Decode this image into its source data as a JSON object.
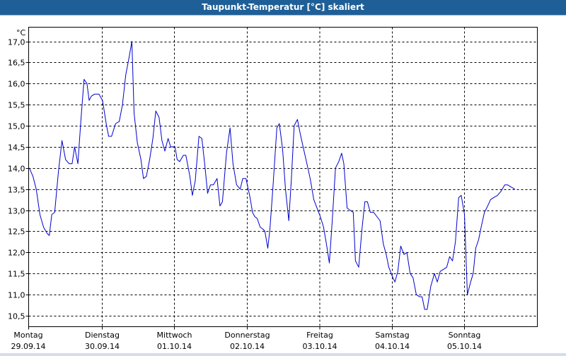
{
  "window": {
    "title": "Taupunkt-Temperatur [°C] skaliert"
  },
  "colors": {
    "titlebar": "#1f5f97",
    "line": "#0000cc",
    "grid": "#000000"
  },
  "chart_data": {
    "type": "line",
    "title": "Taupunkt-Temperatur [°C] skaliert",
    "ylabel": "°C",
    "ylim": [
      10.25,
      17.3
    ],
    "yticks": [
      10.5,
      11.0,
      11.5,
      12.0,
      12.5,
      13.0,
      13.5,
      14.0,
      14.5,
      15.0,
      15.5,
      16.0,
      16.5,
      17.0
    ],
    "ytick_labels": [
      "10,5",
      "11,0",
      "11,5",
      "12,0",
      "12,5",
      "13,0",
      "13,5",
      "14,0",
      "14,5",
      "15,0",
      "15,5",
      "16,0",
      "16,5",
      "17,0"
    ],
    "xlim": [
      0,
      7
    ],
    "xticks": [
      {
        "day": "Montag",
        "date": "29.09.14"
      },
      {
        "day": "Dienstag",
        "date": "30.09.14"
      },
      {
        "day": "Mittwoch",
        "date": "01.10.14"
      },
      {
        "day": "Donnerstag",
        "date": "02.10.14"
      },
      {
        "day": "Freitag",
        "date": "03.10.14"
      },
      {
        "day": "Samstag",
        "date": "04.10.14"
      },
      {
        "day": "Sonntag",
        "date": "05.10.14"
      }
    ],
    "grid": true,
    "series": [
      {
        "points": [
          [
            0.0,
            14.0
          ],
          [
            0.05,
            13.8
          ],
          [
            0.095,
            13.5
          ],
          [
            0.145,
            12.9
          ],
          [
            0.195,
            12.6
          ],
          [
            0.245,
            12.45
          ],
          [
            0.275,
            12.4
          ],
          [
            0.31,
            12.9
          ],
          [
            0.35,
            12.95
          ],
          [
            0.4,
            13.9
          ],
          [
            0.45,
            14.65
          ],
          [
            0.5,
            14.2
          ],
          [
            0.55,
            14.1
          ],
          [
            0.59,
            14.1
          ],
          [
            0.625,
            14.5
          ],
          [
            0.67,
            14.1
          ],
          [
            0.71,
            15.1
          ],
          [
            0.755,
            16.1
          ],
          [
            0.795,
            16.0
          ],
          [
            0.825,
            15.6
          ],
          [
            0.855,
            15.7
          ],
          [
            0.9,
            15.75
          ],
          [
            0.96,
            15.75
          ],
          [
            1.01,
            15.6
          ],
          [
            1.065,
            15.0
          ],
          [
            1.095,
            14.75
          ],
          [
            1.135,
            14.75
          ],
          [
            1.19,
            15.05
          ],
          [
            1.24,
            15.1
          ],
          [
            1.285,
            15.5
          ],
          [
            1.33,
            16.2
          ],
          [
            1.38,
            16.65
          ],
          [
            1.415,
            17.0
          ],
          [
            1.445,
            15.3
          ],
          [
            1.49,
            14.6
          ],
          [
            1.54,
            14.2
          ],
          [
            1.575,
            13.75
          ],
          [
            1.615,
            13.8
          ],
          [
            1.66,
            14.2
          ],
          [
            1.705,
            14.7
          ],
          [
            1.745,
            15.35
          ],
          [
            1.79,
            15.2
          ],
          [
            1.83,
            14.65
          ],
          [
            1.87,
            14.4
          ],
          [
            1.915,
            14.7
          ],
          [
            1.95,
            14.5
          ],
          [
            2.01,
            14.5
          ],
          [
            2.04,
            14.2
          ],
          [
            2.075,
            14.15
          ],
          [
            2.125,
            14.3
          ],
          [
            2.16,
            14.3
          ],
          [
            2.215,
            13.8
          ],
          [
            2.25,
            13.35
          ],
          [
            2.29,
            13.7
          ],
          [
            2.34,
            14.75
          ],
          [
            2.38,
            14.7
          ],
          [
            2.42,
            14.1
          ],
          [
            2.46,
            13.4
          ],
          [
            2.5,
            13.6
          ],
          [
            2.54,
            13.6
          ],
          [
            2.59,
            13.75
          ],
          [
            2.63,
            13.1
          ],
          [
            2.665,
            13.2
          ],
          [
            2.72,
            14.35
          ],
          [
            2.77,
            14.95
          ],
          [
            2.81,
            14.1
          ],
          [
            2.86,
            13.6
          ],
          [
            2.91,
            13.5
          ],
          [
            2.945,
            13.75
          ],
          [
            2.99,
            13.75
          ],
          [
            3.045,
            13.3
          ],
          [
            3.08,
            12.95
          ],
          [
            3.11,
            12.85
          ],
          [
            3.145,
            12.8
          ],
          [
            3.185,
            12.6
          ],
          [
            3.225,
            12.55
          ],
          [
            3.25,
            12.5
          ],
          [
            3.29,
            12.1
          ],
          [
            3.32,
            12.55
          ],
          [
            3.36,
            13.5
          ],
          [
            3.415,
            14.95
          ],
          [
            3.45,
            15.05
          ],
          [
            3.495,
            14.45
          ],
          [
            3.535,
            13.5
          ],
          [
            3.58,
            12.75
          ],
          [
            3.615,
            13.7
          ],
          [
            3.655,
            15.0
          ],
          [
            3.7,
            15.15
          ],
          [
            3.74,
            14.8
          ],
          [
            3.785,
            14.45
          ],
          [
            3.83,
            14.1
          ],
          [
            3.875,
            13.75
          ],
          [
            3.925,
            13.25
          ],
          [
            3.97,
            13.05
          ],
          [
            4.015,
            12.85
          ],
          [
            4.06,
            12.6
          ],
          [
            4.1,
            12.2
          ],
          [
            4.14,
            11.75
          ],
          [
            4.18,
            12.75
          ],
          [
            4.225,
            14.0
          ],
          [
            4.27,
            14.15
          ],
          [
            4.31,
            14.35
          ],
          [
            4.34,
            14.1
          ],
          [
            4.385,
            13.05
          ],
          [
            4.425,
            13.0
          ],
          [
            4.47,
            12.95
          ],
          [
            4.5,
            11.8
          ],
          [
            4.545,
            11.65
          ],
          [
            4.59,
            12.55
          ],
          [
            4.63,
            13.2
          ],
          [
            4.665,
            13.2
          ],
          [
            4.705,
            12.95
          ],
          [
            4.75,
            12.95
          ],
          [
            4.795,
            12.85
          ],
          [
            4.84,
            12.75
          ],
          [
            4.885,
            12.2
          ],
          [
            4.925,
            11.95
          ],
          [
            4.96,
            11.65
          ],
          [
            5.005,
            11.45
          ],
          [
            5.045,
            11.3
          ],
          [
            5.085,
            11.55
          ],
          [
            5.125,
            12.15
          ],
          [
            5.17,
            11.95
          ],
          [
            5.21,
            12.0
          ],
          [
            5.255,
            11.5
          ],
          [
            5.295,
            11.4
          ],
          [
            5.34,
            11.0
          ],
          [
            5.385,
            10.95
          ],
          [
            5.42,
            10.95
          ],
          [
            5.455,
            10.65
          ],
          [
            5.49,
            10.65
          ],
          [
            5.54,
            11.2
          ],
          [
            5.59,
            11.5
          ],
          [
            5.63,
            11.3
          ],
          [
            5.67,
            11.55
          ],
          [
            5.715,
            11.6
          ],
          [
            5.76,
            11.65
          ],
          [
            5.8,
            11.9
          ],
          [
            5.84,
            11.8
          ],
          [
            5.88,
            12.25
          ],
          [
            5.925,
            13.3
          ],
          [
            5.96,
            13.35
          ],
          [
            6.005,
            12.9
          ],
          [
            6.045,
            11.0
          ],
          [
            6.09,
            11.3
          ],
          [
            6.125,
            11.5
          ],
          [
            6.16,
            12.1
          ],
          [
            6.2,
            12.3
          ],
          [
            6.235,
            12.6
          ],
          [
            6.28,
            12.95
          ],
          [
            6.325,
            13.1
          ],
          [
            6.365,
            13.25
          ],
          [
            6.41,
            13.3
          ],
          [
            6.46,
            13.35
          ],
          [
            6.51,
            13.45
          ],
          [
            6.56,
            13.6
          ],
          [
            6.6,
            13.6
          ],
          [
            6.645,
            13.55
          ],
          [
            6.7,
            13.5
          ]
        ]
      }
    ]
  }
}
